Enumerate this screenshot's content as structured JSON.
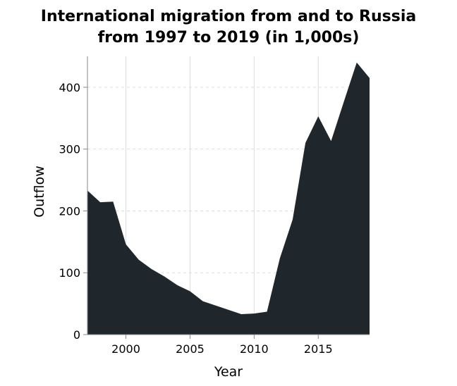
{
  "chart_data": {
    "type": "area",
    "title_lines": [
      "International migration from and to Russia",
      "from 1997 to 2019 (in 1,000s)"
    ],
    "xlabel": "Year",
    "ylabel": "Outflow",
    "xlim": [
      1997,
      2019
    ],
    "ylim": [
      0,
      450
    ],
    "x_ticks": [
      2000,
      2005,
      2010,
      2015
    ],
    "y_ticks": [
      0,
      100,
      200,
      300,
      400
    ],
    "grid": true,
    "fill_color": "#1f272c",
    "x": [
      1997,
      1998,
      1999,
      2000,
      2001,
      2002,
      2003,
      2004,
      2005,
      2006,
      2007,
      2008,
      2009,
      2010,
      2011,
      2012,
      2013,
      2014,
      2015,
      2016,
      2017,
      2018,
      2019
    ],
    "values": [
      233,
      214,
      215,
      146,
      121,
      106,
      94,
      80,
      70,
      54,
      47,
      40,
      33,
      34,
      37,
      123,
      186,
      310,
      353,
      313,
      377,
      440,
      415
    ]
  }
}
